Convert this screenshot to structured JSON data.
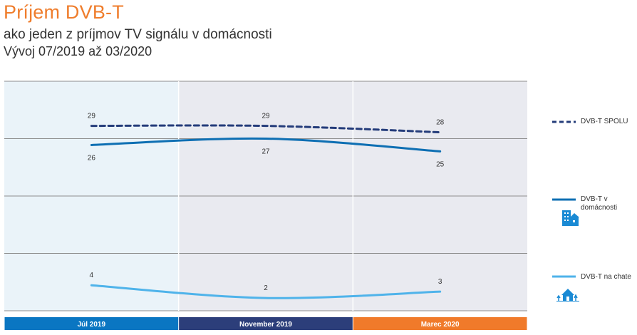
{
  "header": {
    "title": "Príjem DVB-T",
    "subtitle": "ako jeden z príjmov TV signálu v domácnosti",
    "period": "Vývoj 07/2019 až 03/2020"
  },
  "colors": {
    "title": "#EF7D2C",
    "band_1": "#EAF3F9",
    "band_2": "#E9EAF0",
    "band_3": "#E9EAF0",
    "cat_1": "#0A76C2",
    "cat_2": "#2C3E7A",
    "cat_3": "#F07A2A",
    "series_spolu": "#243C7A",
    "series_domacnost": "#0E6FB3",
    "series_chata": "#4FB3EA",
    "icon": "#1A8AD4"
  },
  "chart_data": {
    "type": "line",
    "categories": [
      "Júl 2019",
      "November 2019",
      "Marec 2020"
    ],
    "ylim": [
      0,
      36
    ],
    "grid": true,
    "legend_position": "right",
    "series": [
      {
        "name": "DVB-T SPOLU",
        "values": [
          29,
          29,
          28
        ],
        "style": "dashed",
        "color": "#243C7A",
        "label_pos": [
          "above",
          "above",
          "above"
        ]
      },
      {
        "name": "DVB-T v domácnosti",
        "values": [
          26,
          27,
          25
        ],
        "style": "solid",
        "color": "#0E6FB3",
        "label_pos": [
          "below",
          "below",
          "below"
        ]
      },
      {
        "name": "DVB-T na chate",
        "values": [
          4,
          2,
          3
        ],
        "style": "solid",
        "color": "#4FB3EA",
        "label_pos": [
          "above",
          "above",
          "above"
        ]
      }
    ]
  },
  "legend": {
    "items": [
      {
        "label": "DVB-T SPOLU",
        "icon": ""
      },
      {
        "label": "DVB-T v domácnosti",
        "icon": "apartment-building-icon"
      },
      {
        "label": "DVB-T na chate",
        "icon": "cottage-icon"
      }
    ]
  }
}
